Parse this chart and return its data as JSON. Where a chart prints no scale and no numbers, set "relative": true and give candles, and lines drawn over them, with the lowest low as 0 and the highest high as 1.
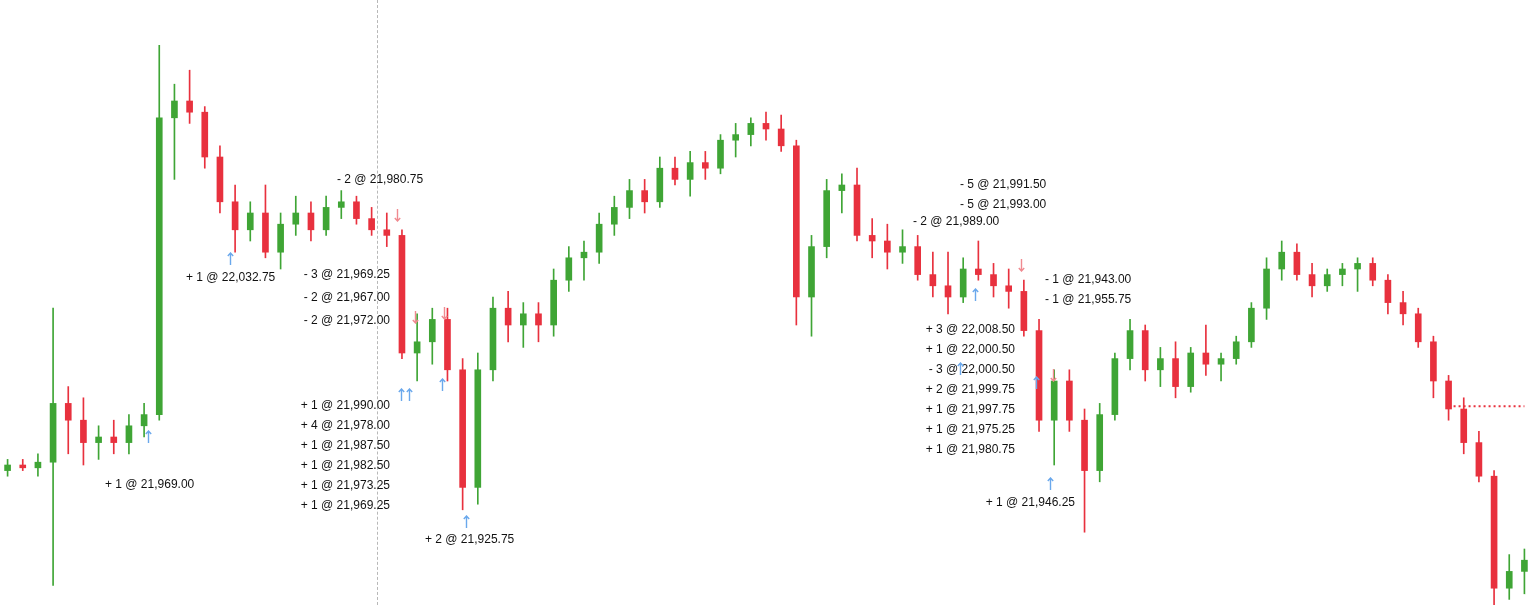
{
  "chart_data": {
    "type": "candlestick",
    "relative": true,
    "colors": [
      "#3fa535",
      "#e8313e",
      "#3fa535",
      "#3fa535",
      "#e8313e",
      "#e8313e",
      "#3fa535",
      "#e8313e",
      "#3fa535",
      "#3fa535",
      "#3fa535",
      "#3fa535",
      "#e8313e",
      "#e8313e",
      "#e8313e",
      "#e8313e",
      "#3fa535",
      "#e8313e",
      "#3fa535",
      "#3fa535",
      "#e8313e",
      "#3fa535",
      "#3fa535",
      "#e8313e",
      "#e8313e",
      "#e8313e",
      "#e8313e",
      "#3fa535",
      "#3fa535",
      "#e8313e",
      "#e8313e",
      "#3fa535",
      "#3fa535",
      "#e8313e",
      "#3fa535",
      "#e8313e",
      "#3fa535",
      "#3fa535",
      "#3fa535",
      "#3fa535",
      "#3fa535",
      "#3fa535",
      "#e8313e",
      "#3fa535",
      "#e8313e",
      "#3fa535",
      "#e8313e",
      "#3fa535",
      "#3fa535",
      "#3fa535",
      "#e8313e",
      "#e8313e",
      "#e8313e",
      "#3fa535",
      "#3fa535",
      "#3fa535",
      "#e8313e",
      "#e8313e",
      "#e8313e",
      "#3fa535",
      "#e8313e",
      "#e8313e",
      "#e8313e",
      "#3fa535",
      "#e8313e",
      "#e8313e",
      "#e8313e",
      "#e8313e",
      "#e8313e",
      "#3fa535",
      "#e8313e",
      "#e8313e",
      "#3fa535",
      "#3fa535",
      "#3fa535",
      "#e8313e",
      "#3fa535",
      "#e8313e",
      "#3fa535",
      "#e8313e",
      "#3fa535",
      "#3fa535",
      "#3fa535",
      "#3fa535",
      "#3fa535",
      "#e8313e",
      "#e8313e",
      "#3fa535",
      "#3fa535",
      "#3fa535",
      "#e8313e",
      "#e8313e",
      "#e8313e",
      "#e8313e",
      "#e8313e",
      "#e8313e",
      "#e8313e",
      "#e8313e",
      "#e8313e",
      "#3fa535",
      "#3fa535"
    ],
    "categories": [
      null,
      null,
      null,
      null,
      null,
      null,
      null,
      null,
      null,
      null,
      null,
      null,
      null,
      null,
      null,
      null,
      null,
      null,
      null,
      null,
      null,
      null,
      null,
      null,
      null,
      null,
      null,
      null,
      null,
      null,
      null,
      null,
      null,
      null,
      null,
      null,
      null,
      null,
      null,
      null,
      null,
      null,
      null,
      null,
      null,
      null,
      null,
      null,
      null,
      null,
      null,
      null,
      null,
      null,
      null,
      null,
      null,
      null,
      null,
      null,
      null,
      null,
      null,
      null,
      null,
      null,
      null,
      null,
      null,
      null,
      null,
      null,
      null,
      null,
      null,
      null,
      null,
      null,
      null,
      null,
      null,
      null,
      null,
      null,
      null,
      null,
      null,
      null,
      null,
      null,
      null,
      null,
      null,
      null,
      null,
      null,
      null,
      null,
      null,
      null,
      null
    ],
    "ohlc": [
      [
        0.24,
        0.26,
        0.23,
        0.25
      ],
      [
        0.25,
        0.26,
        0.24,
        0.245
      ],
      [
        0.245,
        0.27,
        0.23,
        0.255
      ],
      [
        0.255,
        0.53,
        0.035,
        0.36
      ],
      [
        0.36,
        0.39,
        0.27,
        0.33
      ],
      [
        0.33,
        0.37,
        0.25,
        0.29
      ],
      [
        0.29,
        0.32,
        0.26,
        0.3
      ],
      [
        0.3,
        0.33,
        0.27,
        0.29
      ],
      [
        0.29,
        0.34,
        0.27,
        0.32
      ],
      [
        0.32,
        0.36,
        0.3,
        0.34
      ],
      [
        0.34,
        1,
        0.33,
        0.87
      ],
      [
        0.87,
        0.93,
        0.76,
        0.9
      ],
      [
        0.9,
        0.955,
        0.86,
        0.88
      ],
      [
        0.88,
        0.89,
        0.78,
        0.8
      ],
      [
        0.8,
        0.82,
        0.7,
        0.72
      ],
      [
        0.72,
        0.75,
        0.63,
        0.67
      ],
      [
        0.67,
        0.72,
        0.65,
        0.7
      ],
      [
        0.7,
        0.75,
        0.62,
        0.63
      ],
      [
        0.63,
        0.7,
        0.6,
        0.68
      ],
      [
        0.68,
        0.73,
        0.66,
        0.7
      ],
      [
        0.7,
        0.72,
        0.65,
        0.67
      ],
      [
        0.67,
        0.73,
        0.66,
        0.71
      ],
      [
        0.71,
        0.74,
        0.69,
        0.72
      ],
      [
        0.72,
        0.73,
        0.68,
        0.69
      ],
      [
        0.69,
        0.71,
        0.66,
        0.67
      ],
      [
        0.67,
        0.7,
        0.64,
        0.66
      ],
      [
        0.66,
        0.67,
        0.44,
        0.45
      ],
      [
        0.45,
        0.52,
        0.4,
        0.47
      ],
      [
        0.47,
        0.53,
        0.43,
        0.51
      ],
      [
        0.51,
        0.53,
        0.4,
        0.42
      ],
      [
        0.42,
        0.44,
        0.17,
        0.21
      ],
      [
        0.21,
        0.45,
        0.18,
        0.42
      ],
      [
        0.42,
        0.55,
        0.4,
        0.53
      ],
      [
        0.53,
        0.56,
        0.47,
        0.5
      ],
      [
        0.5,
        0.54,
        0.46,
        0.52
      ],
      [
        0.52,
        0.54,
        0.47,
        0.5
      ],
      [
        0.5,
        0.6,
        0.48,
        0.58
      ],
      [
        0.58,
        0.64,
        0.56,
        0.62
      ],
      [
        0.62,
        0.65,
        0.58,
        0.63
      ],
      [
        0.63,
        0.7,
        0.61,
        0.68
      ],
      [
        0.68,
        0.73,
        0.66,
        0.71
      ],
      [
        0.71,
        0.76,
        0.69,
        0.74
      ],
      [
        0.74,
        0.76,
        0.7,
        0.72
      ],
      [
        0.72,
        0.8,
        0.71,
        0.78
      ],
      [
        0.78,
        0.8,
        0.75,
        0.76
      ],
      [
        0.76,
        0.81,
        0.73,
        0.79
      ],
      [
        0.79,
        0.81,
        0.76,
        0.78
      ],
      [
        0.78,
        0.84,
        0.77,
        0.83
      ],
      [
        0.83,
        0.86,
        0.8,
        0.84
      ],
      [
        0.84,
        0.87,
        0.82,
        0.86
      ],
      [
        0.86,
        0.88,
        0.83,
        0.85
      ],
      [
        0.85,
        0.875,
        0.81,
        0.82
      ],
      [
        0.82,
        0.83,
        0.5,
        0.55
      ],
      [
        0.55,
        0.66,
        0.48,
        0.64
      ],
      [
        0.64,
        0.76,
        0.62,
        0.74
      ],
      [
        0.74,
        0.77,
        0.7,
        0.75
      ],
      [
        0.75,
        0.78,
        0.65,
        0.66
      ],
      [
        0.66,
        0.69,
        0.62,
        0.65
      ],
      [
        0.65,
        0.68,
        0.6,
        0.63
      ],
      [
        0.63,
        0.67,
        0.61,
        0.64
      ],
      [
        0.64,
        0.66,
        0.58,
        0.59
      ],
      [
        0.59,
        0.63,
        0.55,
        0.57
      ],
      [
        0.57,
        0.63,
        0.52,
        0.55
      ],
      [
        0.55,
        0.62,
        0.54,
        0.6
      ],
      [
        0.6,
        0.65,
        0.58,
        0.59
      ],
      [
        0.59,
        0.61,
        0.55,
        0.57
      ],
      [
        0.57,
        0.6,
        0.53,
        0.56
      ],
      [
        0.56,
        0.58,
        0.48,
        0.49
      ],
      [
        0.49,
        0.51,
        0.31,
        0.33
      ],
      [
        0.33,
        0.42,
        0.25,
        0.4
      ],
      [
        0.4,
        0.42,
        0.31,
        0.33
      ],
      [
        0.33,
        0.35,
        0.13,
        0.24
      ],
      [
        0.24,
        0.36,
        0.22,
        0.34
      ],
      [
        0.34,
        0.45,
        0.33,
        0.44
      ],
      [
        0.44,
        0.51,
        0.42,
        0.49
      ],
      [
        0.49,
        0.5,
        0.4,
        0.42
      ],
      [
        0.42,
        0.46,
        0.39,
        0.44
      ],
      [
        0.44,
        0.47,
        0.37,
        0.39
      ],
      [
        0.39,
        0.46,
        0.38,
        0.45
      ],
      [
        0.45,
        0.5,
        0.41,
        0.43
      ],
      [
        0.43,
        0.45,
        0.4,
        0.44
      ],
      [
        0.44,
        0.48,
        0.43,
        0.47
      ],
      [
        0.47,
        0.54,
        0.46,
        0.53
      ],
      [
        0.53,
        0.62,
        0.51,
        0.6
      ],
      [
        0.6,
        0.65,
        0.58,
        0.63
      ],
      [
        0.63,
        0.645,
        0.58,
        0.59
      ],
      [
        0.59,
        0.61,
        0.55,
        0.57
      ],
      [
        0.57,
        0.6,
        0.56,
        0.59
      ],
      [
        0.59,
        0.61,
        0.57,
        0.6
      ],
      [
        0.6,
        0.62,
        0.56,
        0.61
      ],
      [
        0.61,
        0.62,
        0.57,
        0.58
      ],
      [
        0.58,
        0.59,
        0.52,
        0.54
      ],
      [
        0.54,
        0.56,
        0.5,
        0.52
      ],
      [
        0.52,
        0.53,
        0.46,
        0.47
      ],
      [
        0.47,
        0.48,
        0.37,
        0.4
      ],
      [
        0.4,
        0.41,
        0.33,
        0.35
      ],
      [
        0.35,
        0.37,
        0.27,
        0.29
      ],
      [
        0.29,
        0.31,
        0.22,
        0.23
      ],
      [
        0.23,
        0.24,
        0,
        0.03
      ],
      [
        0.03,
        0.09,
        0.01,
        0.06
      ],
      [
        0.06,
        0.1,
        0.02,
        0.08
      ]
    ],
    "series": [
      {
        "type": "line",
        "color": "#e8313e",
        "line_style": "dotted",
        "marker": "none",
        "values": [
          null,
          null,
          null,
          null,
          null,
          null,
          null,
          null,
          null,
          null,
          null,
          null,
          null,
          null,
          null,
          null,
          null,
          null,
          null,
          null,
          null,
          null,
          null,
          null,
          null,
          null,
          null,
          null,
          null,
          null,
          null,
          null,
          null,
          null,
          null,
          null,
          null,
          null,
          null,
          null,
          null,
          null,
          null,
          null,
          null,
          null,
          null,
          null,
          null,
          null,
          null,
          null,
          null,
          null,
          null,
          null,
          null,
          null,
          null,
          null,
          null,
          null,
          null,
          null,
          null,
          null,
          null,
          null,
          null,
          null,
          null,
          null,
          null,
          null,
          null,
          null,
          null,
          null,
          null,
          null,
          null,
          null,
          null,
          null,
          null,
          null,
          null,
          null,
          null,
          null,
          null,
          null,
          null,
          null,
          null,
          0.355,
          0.355,
          0.355,
          0.355,
          0.355,
          0.355
        ]
      }
    ],
    "annotations": [
      "- 2 @ 21,980.75",
      "+ 1 @ 22,032.75",
      "+ 1 @ 21,969.00",
      "- 3 @ 21,969.25",
      "- 2 @ 21,967.00",
      "- 2 @ 21,972.00",
      "+ 1 @ 21,990.00",
      "+ 4 @ 21,978.00",
      "+ 1 @ 21,987.50",
      "+ 1 @ 21,982.50",
      "+ 1 @ 21,973.25",
      "+ 1 @ 21,969.25",
      "+ 2 @ 21,925.75",
      "- 2 @ 21,989.00",
      "- 5 @ 21,991.50",
      "- 5 @ 21,993.00",
      "+ 3 @ 22,008.50",
      "+ 1 @ 22,000.50",
      "- 3 @ 22,000.50",
      "+ 2 @ 21,999.75",
      "+ 1 @ 21,997.75",
      "+ 1 @ 21,975.25",
      "+ 1 @ 21,980.75",
      "- 1 @ 21,955.75",
      "- 1 @ 21,943.00",
      "+ 1 @ 21,946.25"
    ]
  }
}
